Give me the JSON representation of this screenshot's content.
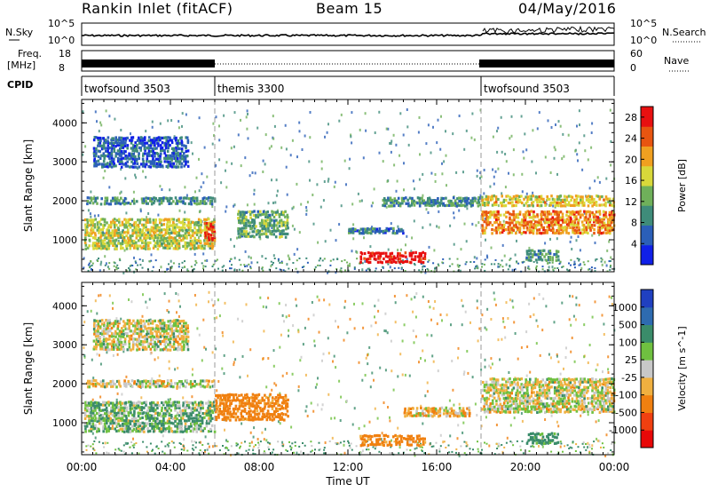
{
  "header": {
    "title": "Rankin Inlet (fitACF)",
    "beam": "Beam 15",
    "date": "04/May/2016"
  },
  "noise_panel": {
    "left_label": "N.Sky",
    "right_label": "N.Search",
    "y_ticks_left": [
      "10^5",
      "10^0"
    ],
    "y_ticks_right": [
      "10^5",
      "10^0"
    ]
  },
  "freq_panel": {
    "left_label_1": "Freq.",
    "left_label_2": "[MHz]",
    "right_label": "Nave",
    "y_ticks_left": [
      "18",
      "8"
    ],
    "y_ticks_right": [
      "60",
      "0"
    ]
  },
  "cpid_panel": {
    "label": "CPID",
    "segments": [
      {
        "name": "twofsound 3503",
        "start_h": 0,
        "end_h": 6
      },
      {
        "name": "themis 3300",
        "start_h": 6,
        "end_h": 18
      },
      {
        "name": "twofsound 3503",
        "start_h": 18,
        "end_h": 24
      }
    ]
  },
  "chart_data": [
    {
      "type": "heatmap",
      "panel": "power",
      "xlabel": "",
      "ylabel": "Slant Range [km]",
      "xlim": [
        0,
        24
      ],
      "ylim": [
        180,
        4600
      ],
      "y_ticks": [
        1000,
        2000,
        3000,
        4000
      ],
      "colorbar": {
        "label": "Power [dB]",
        "ticks": [
          4,
          8,
          12,
          16,
          20,
          24,
          28
        ],
        "range": [
          0,
          30
        ],
        "colors": [
          "#1020e8",
          "#2b5fb8",
          "#3f8c7a",
          "#6fb05a",
          "#d8d83a",
          "#f0a020",
          "#e85510",
          "#e81010"
        ]
      },
      "mode_change_hours": [
        6,
        18
      ],
      "features": [
        {
          "t0": 0.1,
          "t1": 6.0,
          "r0": 800,
          "r1": 1600,
          "value": 16
        },
        {
          "t0": 5.5,
          "t1": 6.0,
          "r0": 1000,
          "r1": 1500,
          "value": 26
        },
        {
          "t0": 0.2,
          "t1": 6.0,
          "r0": 1950,
          "r1": 2150,
          "value": 10
        },
        {
          "t0": 0.5,
          "t1": 4.8,
          "r0": 2900,
          "r1": 3700,
          "value": 6
        },
        {
          "t0": 7.0,
          "t1": 9.3,
          "r0": 1100,
          "r1": 1800,
          "value": 12
        },
        {
          "t0": 12.0,
          "t1": 14.5,
          "r0": 1200,
          "r1": 1350,
          "value": 8
        },
        {
          "t0": 12.5,
          "t1": 15.5,
          "r0": 450,
          "r1": 750,
          "value": 30
        },
        {
          "t0": 13.5,
          "t1": 18.0,
          "r0": 1900,
          "r1": 2150,
          "value": 10
        },
        {
          "t0": 18.0,
          "t1": 24.0,
          "r0": 1200,
          "r1": 1800,
          "value": 22
        },
        {
          "t0": 18.0,
          "t1": 24.0,
          "r0": 1900,
          "r1": 2200,
          "value": 18
        },
        {
          "t0": 20.0,
          "t1": 21.5,
          "r0": 500,
          "r1": 800,
          "value": 10
        }
      ]
    },
    {
      "type": "heatmap",
      "panel": "velocity",
      "xlabel": "Time UT",
      "ylabel": "Slant Range [km]",
      "xlim": [
        0,
        24
      ],
      "ylim": [
        180,
        4600
      ],
      "y_ticks": [
        1000,
        2000,
        3000,
        4000
      ],
      "x_ticks": [
        "00:00",
        "04:00",
        "08:00",
        "12:00",
        "16:00",
        "20:00",
        "00:00"
      ],
      "colorbar": {
        "label": "Velocity [m s^-1]",
        "ticks": [
          "1000",
          "500",
          "100",
          "25",
          "-25",
          "-100",
          "-500",
          "-1000"
        ],
        "colors": [
          "#2040c0",
          "#2e6bb0",
          "#3a8c6a",
          "#6fc040",
          "#c8c8c8",
          "#f0b040",
          "#f08010",
          "#f04010",
          "#e80808"
        ]
      },
      "mode_change_hours": [
        6,
        18
      ],
      "features": [
        {
          "t0": 0.1,
          "t1": 6.0,
          "r0": 800,
          "r1": 1600,
          "value": 80
        },
        {
          "t0": 0.2,
          "t1": 6.0,
          "r0": 1950,
          "r1": 2150,
          "value": 0
        },
        {
          "t0": 0.5,
          "t1": 4.8,
          "r0": 2900,
          "r1": 3700,
          "value": 0
        },
        {
          "t0": 6.0,
          "t1": 9.3,
          "r0": 1100,
          "r1": 1800,
          "value": -200
        },
        {
          "t0": 12.5,
          "t1": 15.5,
          "r0": 450,
          "r1": 750,
          "value": -200
        },
        {
          "t0": 14.5,
          "t1": 17.5,
          "r0": 1200,
          "r1": 1450,
          "value": -50
        },
        {
          "t0": 18.0,
          "t1": 24.0,
          "r0": 1300,
          "r1": 2200,
          "value": 0
        },
        {
          "t0": 20.0,
          "t1": 21.5,
          "r0": 500,
          "r1": 800,
          "value": 200
        }
      ]
    }
  ]
}
